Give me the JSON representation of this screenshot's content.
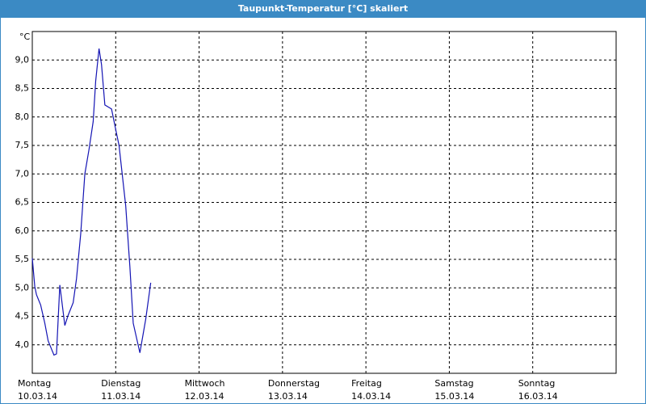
{
  "chart_data": {
    "type": "line",
    "title": "Taupunkt-Temperatur [°C] skaliert",
    "y_label": "°C",
    "x": [
      0,
      0.03,
      0.05,
      0.1,
      0.15,
      0.19,
      0.26,
      0.29,
      0.33,
      0.39,
      0.43,
      0.49,
      0.53,
      0.58,
      0.63,
      0.68,
      0.73,
      0.76,
      0.8,
      0.83,
      0.87,
      0.95,
      1.0,
      1.04,
      1.12,
      1.17,
      1.21,
      1.29,
      1.36,
      1.42
    ],
    "series": [
      {
        "color": "#1414b4",
        "values": [
          5.52,
          5.02,
          4.88,
          4.7,
          4.38,
          4.07,
          3.82,
          3.84,
          5.05,
          4.34,
          4.52,
          4.74,
          5.16,
          5.94,
          7.0,
          7.43,
          7.92,
          8.63,
          9.2,
          8.92,
          8.21,
          8.14,
          7.78,
          7.5,
          6.44,
          5.37,
          4.38,
          3.86,
          4.45,
          5.09
        ]
      }
    ],
    "xlim": [
      0,
      7
    ],
    "xticks": [
      {
        "value": 0,
        "label": "Montag"
      },
      {
        "value": 1,
        "label": "Dienstag"
      },
      {
        "value": 2,
        "label": "Mittwoch"
      },
      {
        "value": 3,
        "label": "Donnerstag"
      },
      {
        "value": 4,
        "label": "Freitag"
      },
      {
        "value": 5,
        "label": "Samstag"
      },
      {
        "value": 6,
        "label": "Sonntag"
      }
    ],
    "xtick_dates": [
      "10.03.14",
      "11.03.14",
      "12.03.14",
      "13.03.14",
      "14.03.14",
      "15.03.14",
      "16.03.14"
    ],
    "ylim": [
      3.5,
      9.5
    ],
    "yticks": [
      {
        "value": 4,
        "label": "4,0"
      },
      {
        "value": 4.5,
        "label": "4,5"
      },
      {
        "value": 5,
        "label": "5,0"
      },
      {
        "value": 5.5,
        "label": "5,5"
      },
      {
        "value": 6,
        "label": "6,0"
      },
      {
        "value": 6.5,
        "label": "6,5"
      },
      {
        "value": 7,
        "label": "7,0"
      },
      {
        "value": 7.5,
        "label": "7,5"
      },
      {
        "value": 8,
        "label": "8,0"
      },
      {
        "value": 8.5,
        "label": "8,5"
      },
      {
        "value": 9,
        "label": "9,0"
      }
    ],
    "grid": true
  }
}
